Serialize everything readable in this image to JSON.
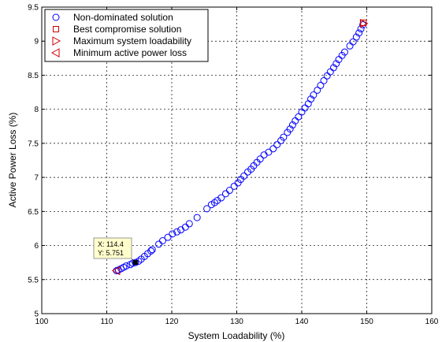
{
  "chart_data": {
    "type": "scatter",
    "title": "",
    "xlabel": "System Loadability (%)",
    "ylabel": "Active Power Loss (%)",
    "xlim": [
      100,
      160
    ],
    "ylim": [
      5,
      9.5
    ],
    "xticks": [
      100,
      110,
      120,
      130,
      140,
      150,
      160
    ],
    "yticks": [
      5,
      5.5,
      6,
      6.5,
      7,
      7.5,
      8,
      8.5,
      9,
      9.5
    ],
    "xtick_labels": [
      "100",
      "110",
      "120",
      "130",
      "140",
      "150",
      "160"
    ],
    "ytick_labels": [
      "5",
      "5.5",
      "6",
      "6.5",
      "7",
      "7.5",
      "8",
      "8.5",
      "9",
      "9.5"
    ],
    "grid": true,
    "legend_position": "top-left",
    "series": [
      {
        "name": "Non-dominated solution",
        "marker": "circle",
        "color": "#0000ff",
        "points": [
          [
            111.5,
            5.63
          ],
          [
            111.8,
            5.64
          ],
          [
            112.2,
            5.66
          ],
          [
            112.6,
            5.68
          ],
          [
            113.0,
            5.7
          ],
          [
            113.6,
            5.72
          ],
          [
            114.0,
            5.74
          ],
          [
            114.4,
            5.75
          ],
          [
            114.9,
            5.77
          ],
          [
            115.3,
            5.8
          ],
          [
            115.8,
            5.84
          ],
          [
            116.3,
            5.88
          ],
          [
            116.8,
            5.92
          ],
          [
            117.0,
            5.94
          ],
          [
            118.0,
            6.02
          ],
          [
            118.6,
            6.07
          ],
          [
            119.4,
            6.12
          ],
          [
            120.1,
            6.17
          ],
          [
            120.8,
            6.2
          ],
          [
            121.4,
            6.23
          ],
          [
            122.1,
            6.27
          ],
          [
            122.7,
            6.32
          ],
          [
            123.9,
            6.41
          ],
          [
            125.4,
            6.54
          ],
          [
            126.1,
            6.6
          ],
          [
            126.6,
            6.63
          ],
          [
            127.0,
            6.66
          ],
          [
            127.6,
            6.7
          ],
          [
            128.3,
            6.76
          ],
          [
            128.9,
            6.81
          ],
          [
            129.6,
            6.87
          ],
          [
            130.2,
            6.92
          ],
          [
            130.6,
            6.97
          ],
          [
            131.1,
            7.02
          ],
          [
            131.7,
            7.08
          ],
          [
            132.2,
            7.12
          ],
          [
            132.6,
            7.17
          ],
          [
            133.1,
            7.22
          ],
          [
            133.6,
            7.27
          ],
          [
            134.2,
            7.33
          ],
          [
            134.9,
            7.37
          ],
          [
            135.6,
            7.42
          ],
          [
            136.2,
            7.48
          ],
          [
            136.8,
            7.54
          ],
          [
            137.2,
            7.59
          ],
          [
            137.8,
            7.66
          ],
          [
            138.2,
            7.71
          ],
          [
            138.6,
            7.77
          ],
          [
            139.0,
            7.83
          ],
          [
            139.5,
            7.89
          ],
          [
            140.0,
            7.96
          ],
          [
            140.5,
            8.02
          ],
          [
            141.0,
            8.08
          ],
          [
            141.4,
            8.15
          ],
          [
            141.8,
            8.21
          ],
          [
            142.4,
            8.28
          ],
          [
            142.9,
            8.35
          ],
          [
            143.4,
            8.42
          ],
          [
            143.9,
            8.49
          ],
          [
            144.4,
            8.55
          ],
          [
            144.9,
            8.61
          ],
          [
            145.3,
            8.67
          ],
          [
            145.7,
            8.73
          ],
          [
            146.2,
            8.79
          ],
          [
            146.6,
            8.84
          ],
          [
            147.4,
            8.93
          ],
          [
            147.9,
            8.99
          ],
          [
            148.4,
            9.06
          ],
          [
            148.8,
            9.12
          ],
          [
            149.1,
            9.18
          ],
          [
            149.4,
            9.24
          ]
        ]
      },
      {
        "name": "Best compromise solution",
        "marker": "square",
        "color": "#cc0000",
        "points": [
          [
            149.5,
            9.27
          ]
        ]
      },
      {
        "name": "Maximum system loadability",
        "marker": "triangle-right",
        "color": "#cc0000",
        "points": [
          [
            149.5,
            9.26
          ]
        ]
      },
      {
        "name": "Minimum active power loss",
        "marker": "triangle-left",
        "color": "#cc0000",
        "points": [
          [
            111.5,
            5.63
          ]
        ]
      }
    ],
    "datatip": {
      "x": 114.4,
      "y": 5.751,
      "line1": "X: 114.4",
      "line2": "Y: 5.751"
    }
  }
}
